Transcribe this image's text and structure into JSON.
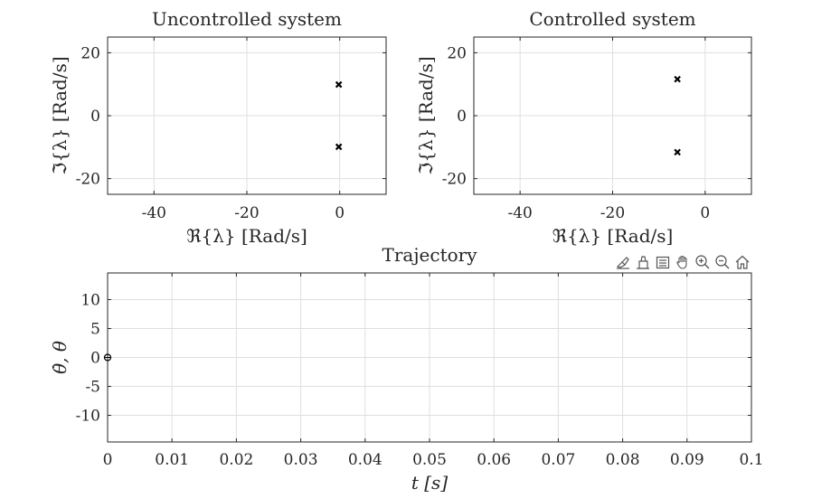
{
  "chart_data": [
    {
      "type": "scatter",
      "title": "Uncontrolled system",
      "xlabel": "ℜ{λ} [Rad/s]",
      "ylabel": "ℑ{λ} [Rad/s]",
      "xlim": [
        -50,
        10
      ],
      "ylim": [
        -25,
        25
      ],
      "xticks": [
        -40,
        -20,
        0
      ],
      "xtick_labels": [
        "-40",
        "-20",
        "0"
      ],
      "yticks": [
        -20,
        0,
        20
      ],
      "ytick_labels": [
        "-20",
        "0",
        "20"
      ],
      "grid": true,
      "marker": "x",
      "points": [
        {
          "x": -0.2,
          "y": 9.9
        },
        {
          "x": -0.2,
          "y": -9.9
        }
      ]
    },
    {
      "type": "scatter",
      "title": "Controlled system",
      "xlabel": "ℜ{λ} [Rad/s]",
      "ylabel": "ℑ{λ} [Rad/s]",
      "xlim": [
        -50,
        10
      ],
      "ylim": [
        -25,
        25
      ],
      "xticks": [
        -40,
        -20,
        0
      ],
      "xtick_labels": [
        "-40",
        "-20",
        "0"
      ],
      "yticks": [
        -20,
        0,
        20
      ],
      "ytick_labels": [
        "-20",
        "0",
        "20"
      ],
      "grid": true,
      "marker": "x",
      "points": [
        {
          "x": -6,
          "y": 11.6
        },
        {
          "x": -6,
          "y": -11.6
        }
      ]
    },
    {
      "type": "line",
      "title": "Trajectory",
      "xlabel": "t [s]",
      "ylabel": "θ̇, θ",
      "xlim": [
        0,
        0.1
      ],
      "ylim": [
        -14.6,
        14.6
      ],
      "xticks": [
        0,
        0.01,
        0.02,
        0.03,
        0.04,
        0.05,
        0.06,
        0.07,
        0.08,
        0.09,
        0.1
      ],
      "xtick_labels": [
        "0",
        "0.01",
        "0.02",
        "0.03",
        "0.04",
        "0.05",
        "0.06",
        "0.07",
        "0.08",
        "0.09",
        "0.1"
      ],
      "yticks": [
        -10,
        -5,
        0,
        5,
        10
      ],
      "ytick_labels": [
        "-10",
        "-5",
        "0",
        "5",
        "10"
      ],
      "grid": true,
      "marker": "circle",
      "points": [
        {
          "x": 0,
          "y": 0
        }
      ]
    }
  ],
  "toolbar": {
    "icons": [
      "brush-icon",
      "data-tips-icon",
      "legend-icon",
      "pan-hand-icon",
      "zoom-in-icon",
      "zoom-out-icon",
      "home-icon"
    ]
  }
}
